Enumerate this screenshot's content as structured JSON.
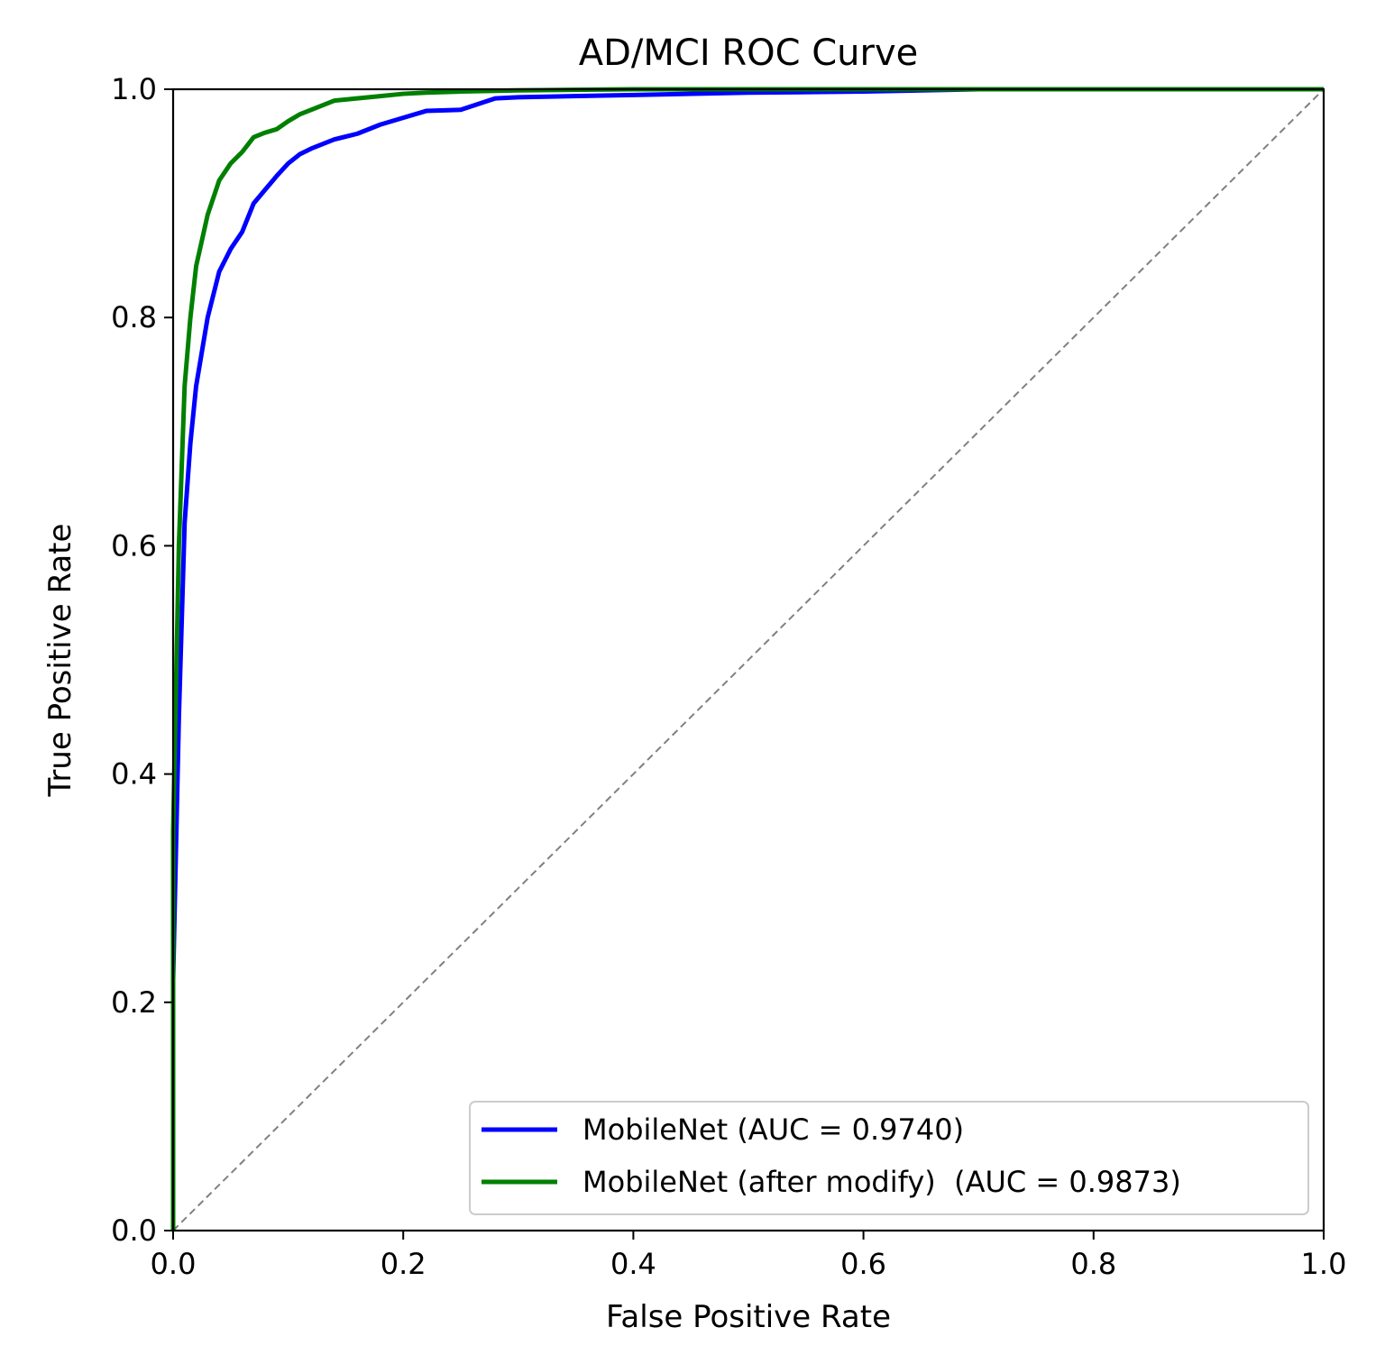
{
  "chart_data": {
    "type": "line",
    "title": "AD/MCI ROC Curve",
    "xlabel": "False Positive Rate",
    "ylabel": "True Positive Rate",
    "xlim": [
      0.0,
      1.0
    ],
    "ylim": [
      0.0,
      1.0
    ],
    "xticks": [
      0.0,
      0.2,
      0.4,
      0.6,
      0.8,
      1.0
    ],
    "yticks": [
      0.0,
      0.2,
      0.4,
      0.6,
      0.8,
      1.0
    ],
    "xtick_labels": [
      "0.0",
      "0.2",
      "0.4",
      "0.6",
      "0.8",
      "1.0"
    ],
    "ytick_labels": [
      "0.0",
      "0.2",
      "0.4",
      "0.6",
      "0.8",
      "1.0"
    ],
    "grid": false,
    "legend_position": "lower-right",
    "series": [
      {
        "name": "MobileNet (AUC = 0.9740)",
        "color": "#0000ff",
        "x": [
          0.0,
          0.0,
          0.005,
          0.01,
          0.015,
          0.02,
          0.03,
          0.04,
          0.05,
          0.06,
          0.07,
          0.08,
          0.09,
          0.1,
          0.11,
          0.12,
          0.14,
          0.16,
          0.18,
          0.2,
          0.22,
          0.25,
          0.28,
          0.3,
          0.4,
          0.5,
          0.6,
          0.7,
          0.8,
          0.9,
          1.0
        ],
        "y": [
          0.0,
          0.22,
          0.45,
          0.62,
          0.69,
          0.74,
          0.8,
          0.84,
          0.86,
          0.875,
          0.9,
          0.912,
          0.924,
          0.935,
          0.943,
          0.948,
          0.956,
          0.961,
          0.969,
          0.975,
          0.981,
          0.982,
          0.992,
          0.993,
          0.995,
          0.997,
          0.998,
          1.0,
          1.0,
          1.0,
          1.0
        ]
      },
      {
        "name": "MobileNet (after modify)  (AUC = 0.9873)",
        "color": "#008000",
        "x": [
          0.0,
          0.0,
          0.005,
          0.01,
          0.015,
          0.02,
          0.03,
          0.04,
          0.05,
          0.06,
          0.07,
          0.08,
          0.09,
          0.1,
          0.11,
          0.12,
          0.14,
          0.16,
          0.18,
          0.2,
          0.22,
          0.25,
          0.3,
          0.4,
          0.5,
          0.6,
          0.7,
          0.8,
          0.9,
          1.0
        ],
        "y": [
          0.0,
          0.35,
          0.6,
          0.74,
          0.8,
          0.845,
          0.89,
          0.92,
          0.935,
          0.945,
          0.958,
          0.962,
          0.965,
          0.972,
          0.978,
          0.982,
          0.99,
          0.992,
          0.994,
          0.996,
          0.997,
          0.998,
          0.999,
          1.0,
          1.0,
          1.0,
          1.0,
          1.0,
          1.0,
          1.0
        ]
      }
    ],
    "reference_line": {
      "x": [
        0.0,
        1.0
      ],
      "y": [
        0.0,
        1.0
      ],
      "color": "#808080",
      "style": "dashed"
    }
  }
}
